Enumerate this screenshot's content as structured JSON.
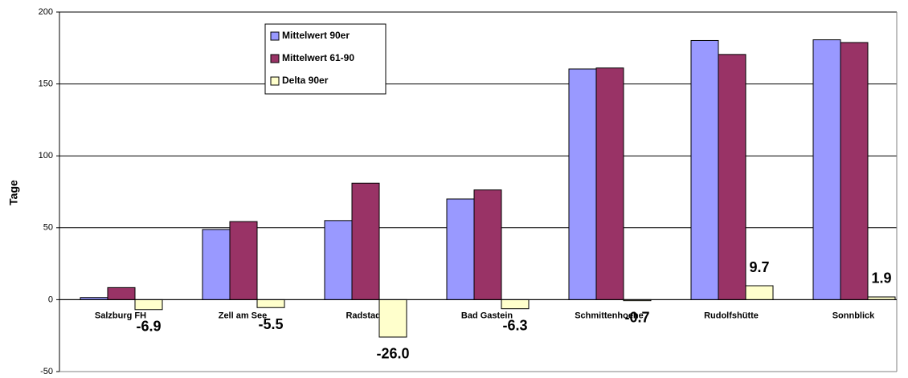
{
  "chart_data": {
    "type": "bar",
    "y_label": "Tage",
    "categories": [
      "Salzburg FH",
      "Zell am See",
      "Radstadt",
      "Bad Gastein",
      "Schmittenhoehe",
      "Rudolfshütte",
      "Sonnblick"
    ],
    "series": [
      {
        "name": "Mittelwert 90er",
        "color": "#9999ff",
        "values": [
          1.5,
          48.8,
          55,
          70,
          160.4,
          180.2,
          180.7
        ]
      },
      {
        "name": "Mittelwert 61-90",
        "color": "#993366",
        "values": [
          8.4,
          54.3,
          81,
          76.3,
          161.1,
          170.5,
          178.8
        ]
      },
      {
        "name": "Delta 90er",
        "color": "#ffffcc",
        "values": [
          -6.9,
          -5.5,
          -26.0,
          -6.3,
          -0.7,
          9.7,
          1.9
        ],
        "value_labels": [
          "-6.9",
          "-5.5",
          "-26.0",
          "-6.3",
          "-0.7",
          "9.7",
          "1.9"
        ]
      }
    ],
    "ylim": [
      -50,
      200
    ],
    "yticks": [
      -50,
      0,
      50,
      100,
      150,
      200
    ],
    "grid": true
  }
}
